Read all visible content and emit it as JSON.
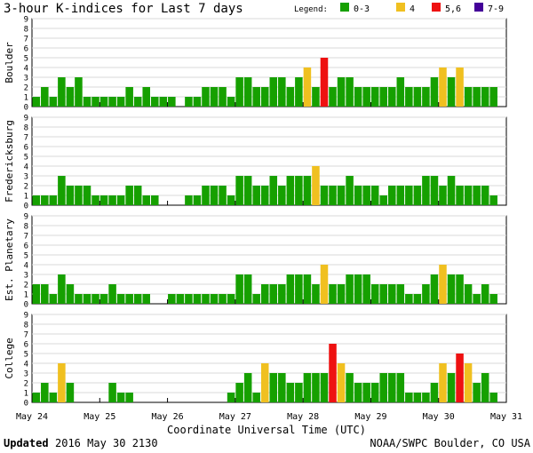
{
  "title": "3-hour K-indices for Last 7 days",
  "legend": {
    "label": "Legend:",
    "items": [
      {
        "label": "0-3",
        "color": "#16a000"
      },
      {
        "label": "4",
        "color": "#f0c020"
      },
      {
        "label": "5,6",
        "color": "#ee1111"
      },
      {
        "label": "7-9",
        "color": "#440099"
      }
    ]
  },
  "footer": {
    "updated_label": "Updated",
    "updated_value": "2016 May 30 2130",
    "source": "NOAA/SWPC Boulder, CO USA"
  },
  "chart_data": {
    "type": "bar",
    "xlabel": "Coordinate Universal Time (UTC)",
    "x_ticks": [
      "May 24",
      "May 25",
      "May 26",
      "May 27",
      "May 28",
      "May 29",
      "May 30",
      "May 31"
    ],
    "y_ticks": [
      "0",
      "1",
      "2",
      "3",
      "4",
      "5",
      "6",
      "7",
      "8",
      "9"
    ],
    "ylim": [
      0,
      9
    ],
    "interval_hours": 3,
    "grid": true,
    "panels": [
      {
        "name": "Boulder",
        "values": [
          1,
          2,
          1,
          3,
          2,
          3,
          1,
          1,
          1,
          1,
          1,
          2,
          1,
          2,
          1,
          1,
          1,
          0,
          1,
          1,
          2,
          2,
          2,
          1,
          3,
          3,
          2,
          2,
          3,
          3,
          2,
          3,
          4,
          2,
          5,
          2,
          3,
          3,
          2,
          2,
          2,
          2,
          2,
          3,
          2,
          2,
          2,
          3,
          4,
          3,
          4,
          2,
          2,
          2,
          2,
          0
        ]
      },
      {
        "name": "Fredericksburg",
        "values": [
          1,
          1,
          1,
          3,
          2,
          2,
          2,
          1,
          1,
          1,
          1,
          2,
          2,
          1,
          1,
          0,
          0,
          0,
          1,
          1,
          2,
          2,
          2,
          1,
          3,
          3,
          2,
          2,
          3,
          2,
          3,
          3,
          3,
          4,
          2,
          2,
          2,
          3,
          2,
          2,
          2,
          1,
          2,
          2,
          2,
          2,
          3,
          3,
          2,
          3,
          2,
          2,
          2,
          2,
          1,
          0
        ]
      },
      {
        "name": "Est. Planetary",
        "values": [
          2,
          2,
          1,
          3,
          2,
          1,
          1,
          1,
          1,
          2,
          1,
          1,
          1,
          1,
          0,
          0,
          1,
          1,
          1,
          1,
          1,
          1,
          1,
          1,
          3,
          3,
          1,
          2,
          2,
          2,
          3,
          3,
          3,
          2,
          4,
          2,
          2,
          3,
          3,
          3,
          2,
          2,
          2,
          2,
          1,
          1,
          2,
          3,
          4,
          3,
          3,
          2,
          1,
          2,
          1,
          0
        ]
      },
      {
        "name": "College",
        "values": [
          1,
          2,
          1,
          4,
          2,
          0,
          0,
          0,
          0,
          2,
          1,
          1,
          0,
          0,
          0,
          0,
          0,
          0,
          0,
          0,
          0,
          0,
          0,
          1,
          2,
          3,
          1,
          4,
          3,
          3,
          2,
          2,
          3,
          3,
          3,
          6,
          4,
          3,
          2,
          2,
          2,
          3,
          3,
          3,
          1,
          1,
          1,
          2,
          4,
          3,
          5,
          4,
          2,
          3,
          1,
          0
        ]
      }
    ]
  }
}
